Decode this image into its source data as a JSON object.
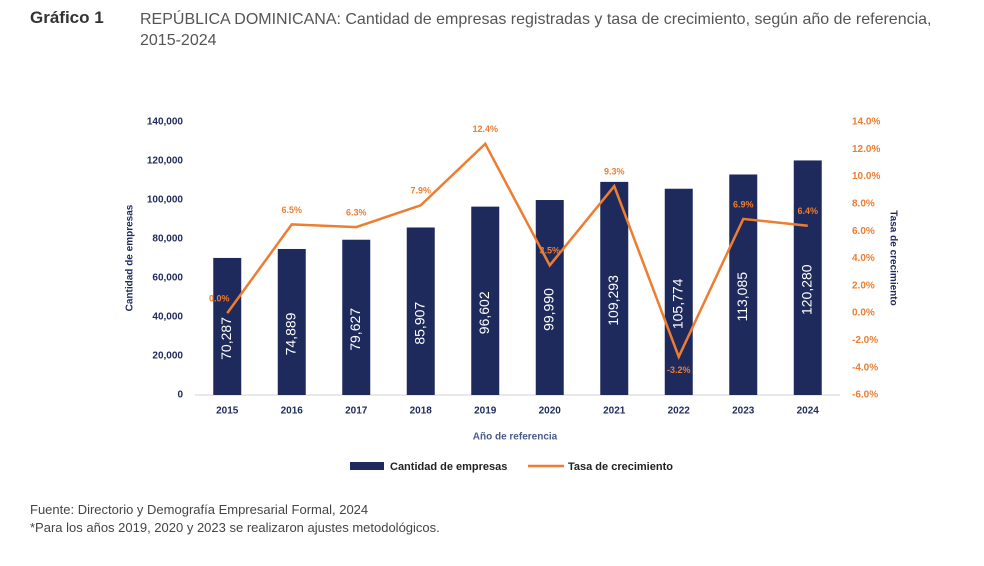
{
  "header": {
    "label": "Gráfico 1",
    "title": "REPÚBLICA DOMINICANA: Cantidad de empresas registradas y tasa de crecimiento, según año de referencia, 2015-2024"
  },
  "chart_data": {
    "type": "bar",
    "x_label": "Año de referencia",
    "y_label": "Cantidad de empresas",
    "y2_label": "Tasa de crecimiento",
    "categories": [
      "2015",
      "2016",
      "2017",
      "2018",
      "2019",
      "2020",
      "2021",
      "2022",
      "2023",
      "2024"
    ],
    "series": [
      {
        "name": "Cantidad de empresas",
        "type": "bar",
        "color": "#1f2a5c",
        "values": [
          70287,
          74889,
          79627,
          85907,
          96602,
          99990,
          109293,
          105774,
          113085,
          120280
        ],
        "value_labels": [
          "70,287",
          "74,889",
          "79,627",
          "85,907",
          "96,602",
          "99,990",
          "109,293",
          "105,774",
          "113,085",
          "120,280"
        ]
      },
      {
        "name": "Tasa de crecimiento",
        "type": "line",
        "axis": "y2",
        "color": "#ed7d31",
        "values": [
          0.0,
          6.5,
          6.3,
          7.9,
          12.4,
          3.5,
          9.3,
          -3.2,
          6.9,
          6.4
        ],
        "value_labels": [
          "0.0%",
          "6.5%",
          "6.3%",
          "7.9%",
          "12.4%",
          "3.5%",
          "9.3%",
          "-3.2%",
          "6.9%",
          "6.4%"
        ]
      }
    ],
    "ylim": [
      0,
      140000
    ],
    "yticks": [
      0,
      {
        "value": 20000,
        "label": "20,000"
      },
      {
        "value": 40000,
        "label": "40,000"
      },
      {
        "value": 60000,
        "label": "60,000"
      },
      {
        "value": 80000,
        "label": "80,000"
      },
      {
        "value": 100000,
        "label": "100,000"
      },
      {
        "value": 120000,
        "label": "120,000"
      },
      {
        "value": 140000,
        "label": "140,000"
      }
    ],
    "y2lim": [
      -6,
      14
    ],
    "y2ticks": [
      {
        "value": -6,
        "label": "-6.0%"
      },
      {
        "value": -4,
        "label": "-4.0%"
      },
      {
        "value": -2,
        "label": "-2.0%"
      },
      {
        "value": 0,
        "label": "0.0%"
      },
      {
        "value": 2,
        "label": "2.0%"
      },
      {
        "value": 4,
        "label": "4.0%"
      },
      {
        "value": 6,
        "label": "6.0%"
      },
      {
        "value": 8,
        "label": "8.0%"
      },
      {
        "value": 10,
        "label": "10.0%"
      },
      {
        "value": 12,
        "label": "12.0%"
      },
      {
        "value": 14,
        "label": "14.0%"
      }
    ],
    "grid": false,
    "legend": "bottom"
  },
  "footer": {
    "source": "Fuente: Directorio y Demografía Empresarial Formal, 2024",
    "note": "*Para los años 2019, 2020 y 2023 se realizaron ajustes metodológicos."
  }
}
